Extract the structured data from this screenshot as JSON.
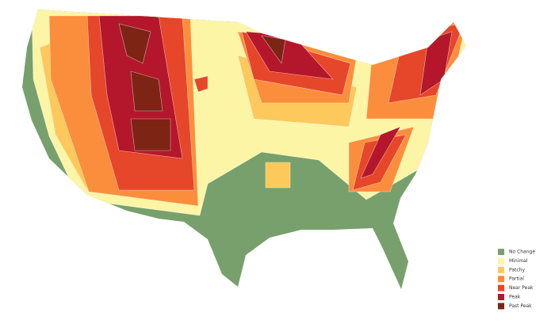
{
  "legend": {
    "items": [
      {
        "label": "No Change",
        "color": "#77a06c"
      },
      {
        "label": "Minimal",
        "color": "#fdf5a6"
      },
      {
        "label": "Patchy",
        "color": "#fdc85c"
      },
      {
        "label": "Partial",
        "color": "#fb8e3c"
      },
      {
        "label": "Near Peak",
        "color": "#e6462a"
      },
      {
        "label": "Peak",
        "color": "#b4172b"
      },
      {
        "label": "Past Peak",
        "color": "#7d2415"
      }
    ]
  }
}
